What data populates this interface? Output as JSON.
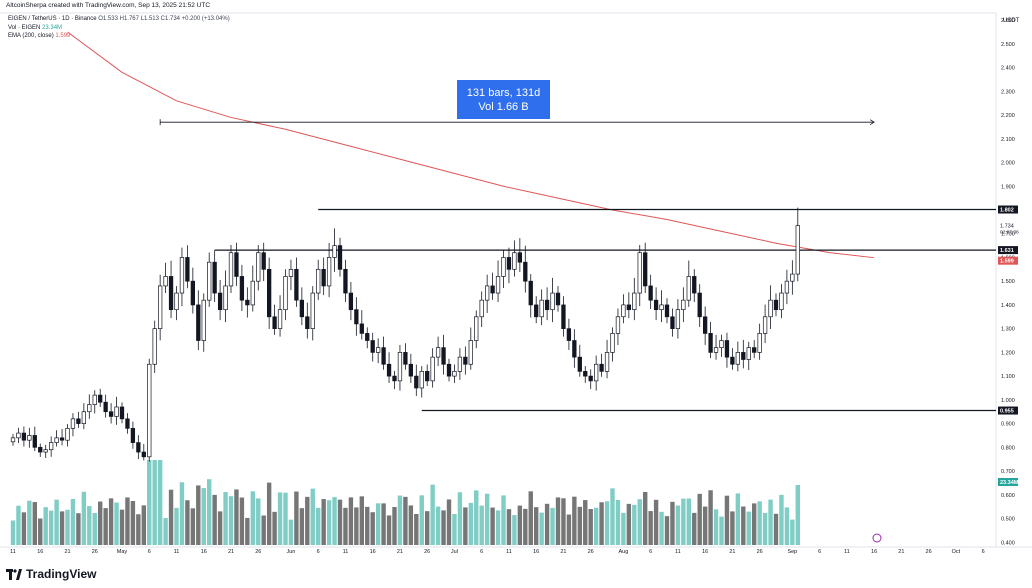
{
  "attribution": "AltcoinSherpa created with TradingView.com, Sep 13, 2025 21:52 UTC",
  "legend": {
    "symbol": "EIGEN / TetherUS · 1D · Binance",
    "ohlc": "O1.533  H1.767  L1.513  C1.734 +0.200 (+13.04%)",
    "vol_label": "Vol · EIGEN",
    "vol_value": "23.34M",
    "ema_label": "EMA (200, close)",
    "ema_value": "1.599"
  },
  "brand": "TradingView",
  "measure_box": {
    "line1": "131 bars, 131d",
    "line2": "Vol 1.66 B"
  },
  "chart_data": {
    "type": "candlestick",
    "symbol": "EIGEN / TetherUS",
    "interval": "1D",
    "exchange": "Binance",
    "y_unit": "USDT",
    "ylim": [
      0.38,
      2.63
    ],
    "y_ticks": [
      2.6,
      2.5,
      2.4,
      2.3,
      2.2,
      2.1,
      2.0,
      1.9,
      1.8,
      1.7,
      1.6,
      1.5,
      1.4,
      1.3,
      1.2,
      1.1,
      1.0,
      0.9,
      0.8,
      0.7,
      0.6,
      0.5,
      0.4
    ],
    "y_tick_labels": [
      "2.600",
      "2.500",
      "2.400",
      "2.300",
      "2.200",
      "2.100",
      "2.000",
      "1.900",
      "1.800",
      "1.700",
      "1.600",
      "1.500",
      "1.400",
      "1.300",
      "1.200",
      "1.100",
      "1.000",
      "0.900",
      "0.800",
      "0.700",
      "0.600",
      "0.500",
      "0.400"
    ],
    "x_tick_labels": [
      {
        "label": "11",
        "day": 0
      },
      {
        "label": "16",
        "day": 5
      },
      {
        "label": "21",
        "day": 10
      },
      {
        "label": "26",
        "day": 15
      },
      {
        "label": "May",
        "day": 20
      },
      {
        "label": "6",
        "day": 25
      },
      {
        "label": "11",
        "day": 30
      },
      {
        "label": "16",
        "day": 35
      },
      {
        "label": "21",
        "day": 40
      },
      {
        "label": "26",
        "day": 45
      },
      {
        "label": "Jun",
        "day": 51
      },
      {
        "label": "6",
        "day": 56
      },
      {
        "label": "11",
        "day": 61
      },
      {
        "label": "16",
        "day": 66
      },
      {
        "label": "21",
        "day": 71
      },
      {
        "label": "26",
        "day": 76
      },
      {
        "label": "Jul",
        "day": 81
      },
      {
        "label": "6",
        "day": 86
      },
      {
        "label": "11",
        "day": 91
      },
      {
        "label": "16",
        "day": 96
      },
      {
        "label": "21",
        "day": 101
      },
      {
        "label": "26",
        "day": 106
      },
      {
        "label": "Aug",
        "day": 112
      },
      {
        "label": "6",
        "day": 117
      },
      {
        "label": "11",
        "day": 122
      },
      {
        "label": "16",
        "day": 127
      },
      {
        "label": "21",
        "day": 132
      },
      {
        "label": "26",
        "day": 137
      },
      {
        "label": "Sep",
        "day": 143
      },
      {
        "label": "6",
        "day": 148
      },
      {
        "label": "11",
        "day": 153
      },
      {
        "label": "16",
        "day": 158
      },
      {
        "label": "21",
        "day": 163
      },
      {
        "label": "26",
        "day": 168
      },
      {
        "label": "Oct",
        "day": 173
      },
      {
        "label": "6",
        "day": 178
      }
    ],
    "close": [
      0.84,
      0.86,
      0.83,
      0.85,
      0.8,
      0.78,
      0.79,
      0.82,
      0.84,
      0.83,
      0.88,
      0.92,
      0.9,
      0.95,
      0.98,
      1.02,
      0.99,
      0.95,
      0.93,
      0.97,
      0.92,
      0.88,
      0.82,
      0.78,
      0.76,
      1.15,
      1.3,
      1.48,
      1.52,
      1.38,
      1.45,
      1.6,
      1.5,
      1.4,
      1.25,
      1.42,
      1.58,
      1.45,
      1.38,
      1.48,
      1.62,
      1.52,
      1.42,
      1.4,
      1.5,
      1.62,
      1.55,
      1.35,
      1.3,
      1.38,
      1.52,
      1.55,
      1.42,
      1.35,
      1.3,
      1.45,
      1.55,
      1.48,
      1.6,
      1.65,
      1.55,
      1.45,
      1.38,
      1.32,
      1.28,
      1.25,
      1.2,
      1.22,
      1.15,
      1.1,
      1.08,
      1.2,
      1.15,
      1.1,
      1.05,
      1.12,
      1.08,
      1.18,
      1.22,
      1.15,
      1.1,
      1.12,
      1.18,
      1.15,
      1.25,
      1.35,
      1.42,
      1.48,
      1.45,
      1.52,
      1.6,
      1.55,
      1.62,
      1.58,
      1.5,
      1.4,
      1.35,
      1.42,
      1.38,
      1.45,
      1.4,
      1.3,
      1.25,
      1.18,
      1.12,
      1.1,
      1.08,
      1.15,
      1.12,
      1.2,
      1.28,
      1.35,
      1.4,
      1.38,
      1.45,
      1.62,
      1.48,
      1.42,
      1.38,
      1.4,
      1.35,
      1.3,
      1.38,
      1.42,
      1.52,
      1.45,
      1.35,
      1.28,
      1.2,
      1.22,
      1.25,
      1.18,
      1.15,
      1.2,
      1.17,
      1.22,
      1.2,
      1.28,
      1.35,
      1.42,
      1.38,
      1.45,
      1.5,
      1.53,
      1.734
    ],
    "horizontal_lines": [
      {
        "price": 1.802,
        "label": "1.802",
        "start_day": 56
      },
      {
        "price": 1.631,
        "label": "1.631",
        "start_day": 37
      },
      {
        "price": 0.955,
        "label": "0.955",
        "start_day": 75
      }
    ],
    "ema": {
      "label": "EMA (200, close)",
      "value": 1.599,
      "points": [
        [
          10,
          2.55
        ],
        [
          20,
          2.38
        ],
        [
          30,
          2.26
        ],
        [
          40,
          2.19
        ],
        [
          50,
          2.14
        ],
        [
          60,
          2.08
        ],
        [
          70,
          2.02
        ],
        [
          80,
          1.96
        ],
        [
          90,
          1.9
        ],
        [
          100,
          1.85
        ],
        [
          110,
          1.8
        ],
        [
          120,
          1.76
        ],
        [
          130,
          1.71
        ],
        [
          140,
          1.66
        ],
        [
          150,
          1.62
        ],
        [
          158,
          1.599
        ]
      ]
    },
    "current_price": {
      "value": 1.734,
      "label": "1.734",
      "countdown": "02:07:36"
    },
    "ema_label_value": "1.599",
    "volume_current": "23.34M",
    "measure": {
      "text1": "131 bars, 131d",
      "text2": "Vol 1.66 B",
      "from_day": 27,
      "to_day": 158,
      "price": 2.17
    }
  }
}
